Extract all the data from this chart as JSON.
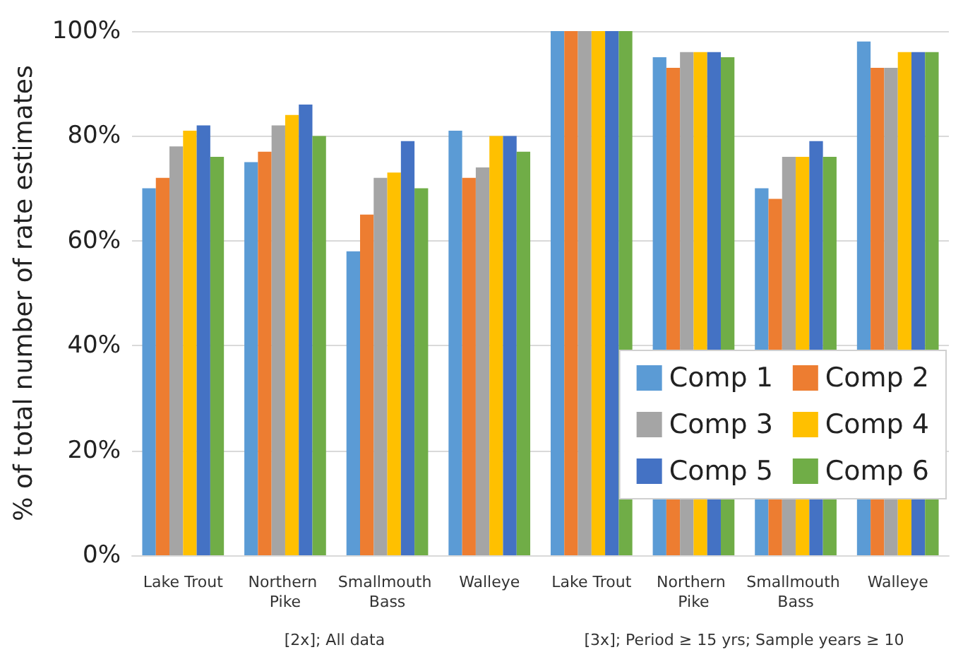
{
  "chart_data": {
    "type": "bar",
    "ylabel": "% of total number of rate estimates",
    "categories": [
      "Lake Trout",
      "Northern Pike",
      "Smallmouth Bass",
      "Walleye",
      "Lake Trout",
      "Northern Pike",
      "Smallmouth Bass",
      "Walleye"
    ],
    "series": [
      {
        "name": "Comp 1",
        "color": "#5b9bd5",
        "values": [
          70,
          75,
          58,
          81,
          100,
          95,
          70,
          98
        ]
      },
      {
        "name": "Comp 2",
        "color": "#ed7d31",
        "values": [
          72,
          77,
          65,
          72,
          100,
          93,
          68,
          93
        ]
      },
      {
        "name": "Comp 3",
        "color": "#a5a5a5",
        "values": [
          78,
          82,
          72,
          74,
          100,
          96,
          76,
          93
        ]
      },
      {
        "name": "Comp 4",
        "color": "#ffc000",
        "values": [
          81,
          84,
          73,
          80,
          100,
          96,
          76,
          96
        ]
      },
      {
        "name": "Comp 5",
        "color": "#4472c4",
        "values": [
          82,
          86,
          79,
          80,
          100,
          96,
          79,
          96
        ]
      },
      {
        "name": "Comp 6",
        "color": "#70ad47",
        "values": [
          76,
          80,
          70,
          77,
          100,
          95,
          76,
          96
        ]
      }
    ],
    "ylim": [
      0,
      100
    ],
    "yticks": [
      {
        "value": 0,
        "label": "0%"
      },
      {
        "value": 20,
        "label": "20%"
      },
      {
        "value": 40,
        "label": "40%"
      },
      {
        "value": 60,
        "label": "60%"
      },
      {
        "value": 80,
        "label": "80%"
      },
      {
        "value": 100,
        "label": "100%"
      }
    ],
    "grid": "y",
    "legend": "bottom right",
    "annotations": [
      "[2x]; All data",
      "[3x]; Period ≥ 15 yrs; Sample years ≥ 10"
    ]
  }
}
